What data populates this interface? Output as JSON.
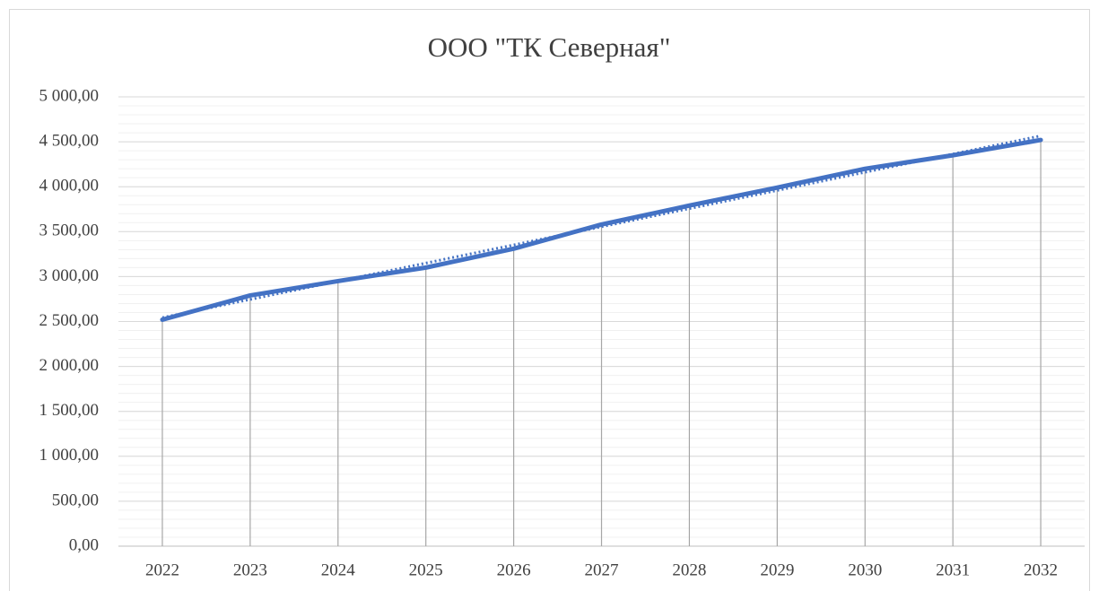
{
  "chart_data": {
    "type": "line",
    "title": "ООО \"ТК Северная\"",
    "categories": [
      "2022",
      "2023",
      "2024",
      "2025",
      "2026",
      "2027",
      "2028",
      "2029",
      "2030",
      "2031",
      "2032"
    ],
    "series": [
      {
        "color": "#4472c4",
        "values": [
          2520,
          2790,
          2950,
          3100,
          3310,
          3580,
          3790,
          3990,
          4200,
          4350,
          4520
        ]
      }
    ],
    "ylim": [
      0,
      5000
    ],
    "yticks": [
      {
        "value": 0,
        "label": "0,00"
      },
      {
        "value": 500,
        "label": "500,00"
      },
      {
        "value": 1000,
        "label": "1 000,00"
      },
      {
        "value": 1500,
        "label": "1 500,00"
      },
      {
        "value": 2000,
        "label": "2 000,00"
      },
      {
        "value": 2500,
        "label": "2 500,00"
      },
      {
        "value": 3000,
        "label": "3 000,00"
      },
      {
        "value": 3500,
        "label": "3 500,00"
      },
      {
        "value": 4000,
        "label": "4 000,00"
      },
      {
        "value": 4500,
        "label": "4 500,00"
      },
      {
        "value": 5000,
        "label": "5 000,00"
      }
    ],
    "grid": true,
    "minor_grid_step": 100,
    "drop_lines": true,
    "trendline": "linear"
  }
}
